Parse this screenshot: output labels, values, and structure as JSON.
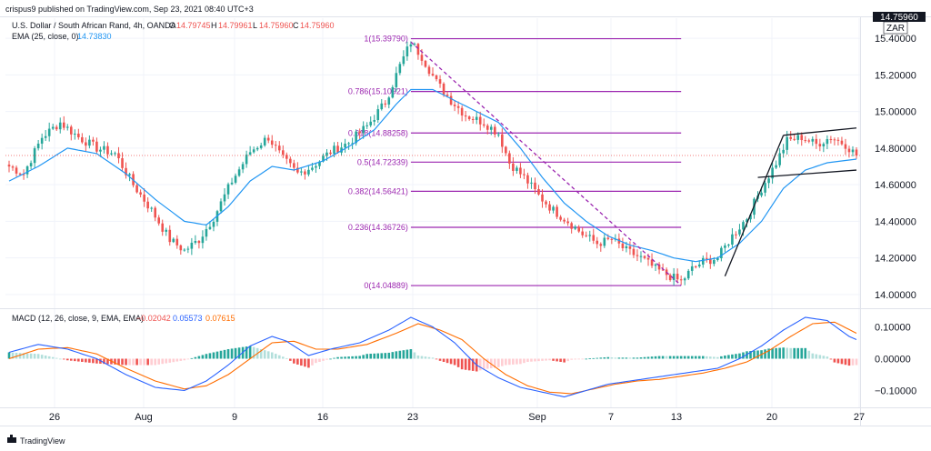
{
  "header": {
    "published_by": "crispus9 published on TradingView.com, Sep 23, 2021 08:40 UTC+3",
    "symbol_line": "U.S. Dollar / South African Rand, 4h, OANDA",
    "ohlc": {
      "o_label": "O",
      "o": "14.79745",
      "h_label": "H",
      "h": "14.79961",
      "l_label": "L",
      "l": "14.75960",
      "c_label": "C",
      "c": "14.75960"
    },
    "ema_label": "EMA (25, close, 0)",
    "ema_value": "14.73830",
    "macd_label": "MACD (12, 26, close, 9, EMA, EMA)",
    "macd_hist": "−0.02042",
    "macd_line": "0.05573",
    "macd_signal": "0.07615",
    "currency": "ZAR",
    "last_price": "14.75960",
    "watermark": "TradingView"
  },
  "colors": {
    "bull": "#26a69a",
    "bear": "#ef5350",
    "ema": "#2196f3",
    "fib": "#9c27b0",
    "macd": "#2962ff",
    "signal": "#ff6d00",
    "hist_bull": "#26a69a",
    "hist_bull_light": "#b2dfdb",
    "hist_bear": "#ef5350",
    "hist_bear_light": "#ffcdd2",
    "text": "#131722",
    "grid": "#f0f3fa"
  },
  "chart_data": {
    "type": "candlestick",
    "timeframe": "4h",
    "x_ticks": [
      "26",
      "Aug",
      "9",
      "16",
      "23",
      "Sep",
      "7",
      "13",
      "20",
      "27"
    ],
    "price_axis": {
      "ticks": [
        "15.40000",
        "15.20000",
        "15.00000",
        "14.80000",
        "14.60000",
        "14.40000",
        "14.20000",
        "14.00000"
      ],
      "range": [
        13.93,
        15.5
      ]
    },
    "macd_axis": {
      "ticks": [
        "0.10000",
        "0.00000",
        "−0.10000"
      ],
      "range": [
        -0.15,
        0.15
      ]
    },
    "price_anchors": [
      [
        0,
        14.7
      ],
      [
        4,
        14.66
      ],
      [
        9,
        14.86
      ],
      [
        14,
        14.94
      ],
      [
        19,
        14.86
      ],
      [
        24,
        14.8
      ],
      [
        29,
        14.77
      ],
      [
        34,
        14.6
      ],
      [
        39,
        14.46
      ],
      [
        44,
        14.3
      ],
      [
        48,
        14.24
      ],
      [
        52,
        14.3
      ],
      [
        56,
        14.42
      ],
      [
        61,
        14.62
      ],
      [
        66,
        14.78
      ],
      [
        71,
        14.86
      ],
      [
        75,
        14.74
      ],
      [
        79,
        14.66
      ],
      [
        83,
        14.7
      ],
      [
        88,
        14.78
      ],
      [
        93,
        14.83
      ],
      [
        98,
        14.92
      ],
      [
        103,
        15.05
      ],
      [
        107,
        15.25
      ],
      [
        110,
        15.38
      ],
      [
        113,
        15.3
      ],
      [
        117,
        15.16
      ],
      [
        121,
        15.06
      ],
      [
        125,
        14.98
      ],
      [
        130,
        14.94
      ],
      [
        134,
        14.88
      ],
      [
        137,
        14.72
      ],
      [
        141,
        14.64
      ],
      [
        145,
        14.54
      ],
      [
        149,
        14.46
      ],
      [
        153,
        14.4
      ],
      [
        157,
        14.33
      ],
      [
        161,
        14.28
      ],
      [
        165,
        14.3
      ],
      [
        169,
        14.24
      ],
      [
        173,
        14.2
      ],
      [
        177,
        14.14
      ],
      [
        181,
        14.1
      ],
      [
        184,
        14.07
      ],
      [
        187,
        14.14
      ],
      [
        190,
        14.18
      ],
      [
        194,
        14.2
      ],
      [
        198,
        14.32
      ],
      [
        202,
        14.42
      ],
      [
        206,
        14.58
      ],
      [
        210,
        14.72
      ],
      [
        213,
        14.84
      ],
      [
        217,
        14.86
      ],
      [
        221,
        14.82
      ],
      [
        225,
        14.86
      ],
      [
        229,
        14.82
      ],
      [
        232,
        14.76
      ]
    ],
    "ema_anchors": [
      [
        0,
        14.62
      ],
      [
        8,
        14.7
      ],
      [
        16,
        14.8
      ],
      [
        24,
        14.77
      ],
      [
        32,
        14.66
      ],
      [
        40,
        14.52
      ],
      [
        48,
        14.4
      ],
      [
        54,
        14.38
      ],
      [
        60,
        14.48
      ],
      [
        66,
        14.62
      ],
      [
        72,
        14.7
      ],
      [
        78,
        14.68
      ],
      [
        86,
        14.73
      ],
      [
        94,
        14.82
      ],
      [
        100,
        14.9
      ],
      [
        106,
        15.04
      ],
      [
        110,
        15.12
      ],
      [
        116,
        15.12
      ],
      [
        122,
        15.06
      ],
      [
        128,
        15.0
      ],
      [
        134,
        14.94
      ],
      [
        140,
        14.8
      ],
      [
        146,
        14.64
      ],
      [
        152,
        14.5
      ],
      [
        158,
        14.4
      ],
      [
        164,
        14.32
      ],
      [
        170,
        14.27
      ],
      [
        176,
        14.24
      ],
      [
        182,
        14.2
      ],
      [
        188,
        14.18
      ],
      [
        194,
        14.2
      ],
      [
        200,
        14.28
      ],
      [
        206,
        14.4
      ],
      [
        212,
        14.58
      ],
      [
        218,
        14.68
      ],
      [
        224,
        14.72
      ],
      [
        232,
        14.74
      ]
    ],
    "macd_anchors": [
      [
        0,
        0.02
      ],
      [
        8,
        0.045
      ],
      [
        16,
        0.03
      ],
      [
        24,
        0.0
      ],
      [
        32,
        -0.05
      ],
      [
        40,
        -0.09
      ],
      [
        48,
        -0.1
      ],
      [
        54,
        -0.07
      ],
      [
        60,
        -0.02
      ],
      [
        66,
        0.04
      ],
      [
        72,
        0.07
      ],
      [
        76,
        0.055
      ],
      [
        82,
        0.01
      ],
      [
        88,
        0.03
      ],
      [
        96,
        0.05
      ],
      [
        104,
        0.09
      ],
      [
        110,
        0.13
      ],
      [
        116,
        0.1
      ],
      [
        122,
        0.05
      ],
      [
        128,
        -0.02
      ],
      [
        134,
        -0.06
      ],
      [
        140,
        -0.09
      ],
      [
        146,
        -0.105
      ],
      [
        152,
        -0.12
      ],
      [
        158,
        -0.1
      ],
      [
        164,
        -0.08
      ],
      [
        170,
        -0.07
      ],
      [
        176,
        -0.06
      ],
      [
        182,
        -0.05
      ],
      [
        188,
        -0.04
      ],
      [
        194,
        -0.03
      ],
      [
        200,
        0.0
      ],
      [
        206,
        0.04
      ],
      [
        212,
        0.09
      ],
      [
        218,
        0.13
      ],
      [
        224,
        0.12
      ],
      [
        230,
        0.07
      ],
      [
        232,
        0.06
      ]
    ],
    "signal_anchors": [
      [
        0,
        0.0
      ],
      [
        8,
        0.03
      ],
      [
        16,
        0.035
      ],
      [
        24,
        0.015
      ],
      [
        32,
        -0.03
      ],
      [
        40,
        -0.07
      ],
      [
        48,
        -0.095
      ],
      [
        54,
        -0.085
      ],
      [
        60,
        -0.05
      ],
      [
        66,
        0.0
      ],
      [
        72,
        0.05
      ],
      [
        78,
        0.055
      ],
      [
        84,
        0.03
      ],
      [
        90,
        0.03
      ],
      [
        98,
        0.045
      ],
      [
        106,
        0.08
      ],
      [
        112,
        0.11
      ],
      [
        118,
        0.09
      ],
      [
        124,
        0.06
      ],
      [
        130,
        0.0
      ],
      [
        136,
        -0.05
      ],
      [
        142,
        -0.085
      ],
      [
        148,
        -0.105
      ],
      [
        154,
        -0.11
      ],
      [
        160,
        -0.095
      ],
      [
        166,
        -0.08
      ],
      [
        172,
        -0.07
      ],
      [
        178,
        -0.065
      ],
      [
        184,
        -0.055
      ],
      [
        190,
        -0.045
      ],
      [
        196,
        -0.03
      ],
      [
        202,
        -0.01
      ],
      [
        208,
        0.025
      ],
      [
        214,
        0.07
      ],
      [
        220,
        0.11
      ],
      [
        226,
        0.115
      ],
      [
        232,
        0.08
      ]
    ],
    "fibonacci": {
      "levels": [
        {
          "label": "1(15.39790)",
          "value": 15.3979
        },
        {
          "label": "0.786(15.10921)",
          "value": 15.10921
        },
        {
          "label": "0.618(14.88258)",
          "value": 14.88258
        },
        {
          "label": "0.5(14.72339)",
          "value": 14.72339
        },
        {
          "label": "0.382(14.56421)",
          "value": 14.56421
        },
        {
          "label": "0.236(14.36726)",
          "value": 14.36726
        },
        {
          "label": "0(14.04889)",
          "value": 14.04889
        }
      ],
      "start_bar": 110,
      "end_bar": 184
    },
    "trendlines": [
      {
        "style": "dashed",
        "from": [
          110,
          15.38
        ],
        "to": [
          184,
          14.05
        ]
      },
      {
        "style": "solid",
        "from": [
          196,
          14.1
        ],
        "to": [
          212,
          14.87
        ]
      },
      {
        "style": "solid",
        "from": [
          212,
          14.87
        ],
        "to": [
          232,
          14.91
        ]
      },
      {
        "style": "solid",
        "from": [
          205,
          14.64
        ],
        "to": [
          232,
          14.68
        ]
      }
    ]
  }
}
